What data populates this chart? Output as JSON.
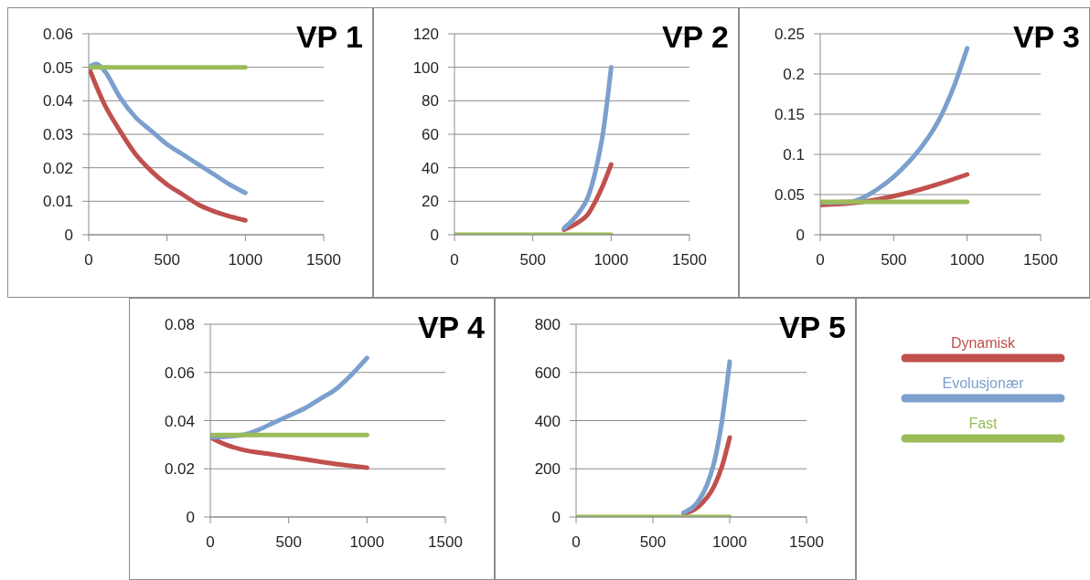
{
  "chart_data": [
    {
      "type": "line",
      "title": "VP 1",
      "xlim": [
        0,
        1500
      ],
      "xticks": [
        0,
        500,
        1000,
        1500
      ],
      "ylim": [
        0,
        0.06
      ],
      "yticks": [
        0,
        0.01,
        0.02,
        0.03,
        0.04,
        0.05,
        0.06
      ],
      "grid": "y",
      "series": [
        {
          "color": "#c0504d",
          "x": [
            0,
            100,
            200,
            300,
            400,
            500,
            600,
            700,
            800,
            900,
            1000
          ],
          "values": [
            0.05,
            0.039,
            0.031,
            0.024,
            0.019,
            0.015,
            0.012,
            0.009,
            0.007,
            0.0055,
            0.0043
          ]
        },
        {
          "color": "#7ba0cd",
          "x": [
            0,
            50,
            100,
            200,
            300,
            400,
            500,
            600,
            700,
            800,
            900,
            1000
          ],
          "values": [
            0.05,
            0.051,
            0.049,
            0.041,
            0.035,
            0.031,
            0.027,
            0.024,
            0.021,
            0.018,
            0.015,
            0.0125
          ]
        },
        {
          "color": "#9bbb59",
          "x": [
            0,
            1000
          ],
          "values": [
            0.05,
            0.05
          ]
        }
      ]
    },
    {
      "type": "line",
      "title": "VP 2",
      "xlim": [
        0,
        1500
      ],
      "xticks": [
        0,
        500,
        1000,
        1500
      ],
      "ylim": [
        0,
        120
      ],
      "yticks": [
        0,
        20,
        40,
        60,
        80,
        100,
        120
      ],
      "grid": "y",
      "series": [
        {
          "color": "#c0504d",
          "x": [
            700,
            800,
            850,
            900,
            950,
            1000
          ],
          "values": [
            3,
            8,
            12,
            20,
            30,
            42
          ]
        },
        {
          "color": "#7ba0cd",
          "x": [
            700,
            800,
            850,
            900,
            950,
            1000
          ],
          "values": [
            4,
            14,
            22,
            38,
            62,
            100
          ]
        },
        {
          "color": "#9bbb59",
          "x": [
            0,
            1000
          ],
          "values": [
            0,
            0
          ]
        }
      ]
    },
    {
      "type": "line",
      "title": "VP 3",
      "xlim": [
        0,
        1500
      ],
      "xticks": [
        0,
        500,
        1000,
        1500
      ],
      "ylim": [
        0,
        0.25
      ],
      "yticks": [
        0,
        0.05,
        0.1,
        0.15,
        0.2,
        0.25
      ],
      "grid": "y",
      "series": [
        {
          "color": "#c0504d",
          "x": [
            0,
            250,
            500,
            750,
            1000
          ],
          "values": [
            0.037,
            0.04,
            0.048,
            0.06,
            0.075
          ]
        },
        {
          "color": "#7ba0cd",
          "x": [
            0,
            200,
            300,
            400,
            500,
            600,
            700,
            800,
            900,
            1000
          ],
          "values": [
            0.04,
            0.041,
            0.047,
            0.058,
            0.072,
            0.09,
            0.112,
            0.14,
            0.18,
            0.232
          ]
        },
        {
          "color": "#9bbb59",
          "x": [
            0,
            1000
          ],
          "values": [
            0.041,
            0.041
          ]
        }
      ]
    },
    {
      "type": "line",
      "title": "VP 4",
      "xlim": [
        0,
        1500
      ],
      "xticks": [
        0,
        500,
        1000,
        1500
      ],
      "ylim": [
        0,
        0.08
      ],
      "yticks": [
        0,
        0.02,
        0.04,
        0.06,
        0.08
      ],
      "grid": "y",
      "series": [
        {
          "color": "#c0504d",
          "x": [
            0,
            100,
            200,
            400,
            600,
            800,
            1000
          ],
          "values": [
            0.033,
            0.03,
            0.028,
            0.026,
            0.024,
            0.022,
            0.0205
          ]
        },
        {
          "color": "#7ba0cd",
          "x": [
            0,
            200,
            300,
            400,
            500,
            600,
            700,
            800,
            900,
            1000
          ],
          "values": [
            0.033,
            0.034,
            0.036,
            0.039,
            0.042,
            0.045,
            0.049,
            0.053,
            0.059,
            0.066
          ]
        },
        {
          "color": "#9bbb59",
          "x": [
            0,
            1000
          ],
          "values": [
            0.034,
            0.034
          ]
        }
      ]
    },
    {
      "type": "line",
      "title": "VP 5",
      "xlim": [
        0,
        1500
      ],
      "xticks": [
        0,
        500,
        1000,
        1500
      ],
      "ylim": [
        0,
        800
      ],
      "yticks": [
        0,
        200,
        400,
        600,
        800
      ],
      "grid": "y",
      "legend": "right",
      "series": [
        {
          "name": "Dynamisk",
          "color": "#c0504d",
          "x": [
            700,
            800,
            900,
            950,
            1000
          ],
          "values": [
            12,
            45,
            130,
            210,
            330
          ]
        },
        {
          "name": "Evolusjonær",
          "color": "#7ba0cd",
          "x": [
            700,
            800,
            850,
            900,
            950,
            1000
          ],
          "values": [
            18,
            70,
            130,
            230,
            400,
            645
          ]
        },
        {
          "name": "Fast",
          "color": "#9bbb59",
          "x": [
            0,
            1000
          ],
          "values": [
            0,
            0
          ]
        }
      ]
    }
  ]
}
